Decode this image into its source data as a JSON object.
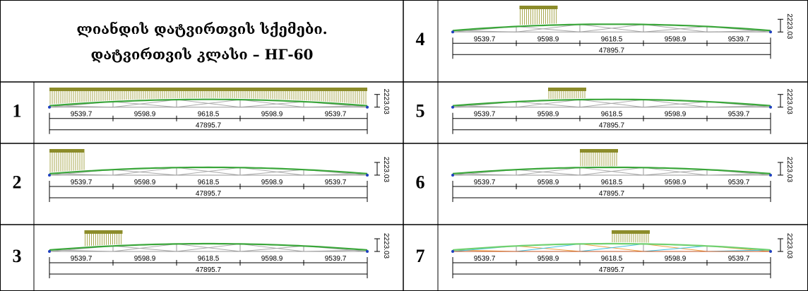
{
  "title": [
    "ლიანდის დატვირთვის სქემები.",
    "დატვირთვის კლასი – НГ-60"
  ],
  "dimensions": {
    "spans": [
      9539.7,
      9598.9,
      9618.5,
      9598.9,
      9539.7
    ],
    "total": 47895.7,
    "height": 2223.03
  },
  "panels": [
    {
      "number": 1
    },
    {
      "number": 2
    },
    {
      "number": 3
    },
    {
      "number": 4
    },
    {
      "number": 5
    },
    {
      "number": 6
    },
    {
      "number": 7
    }
  ]
}
